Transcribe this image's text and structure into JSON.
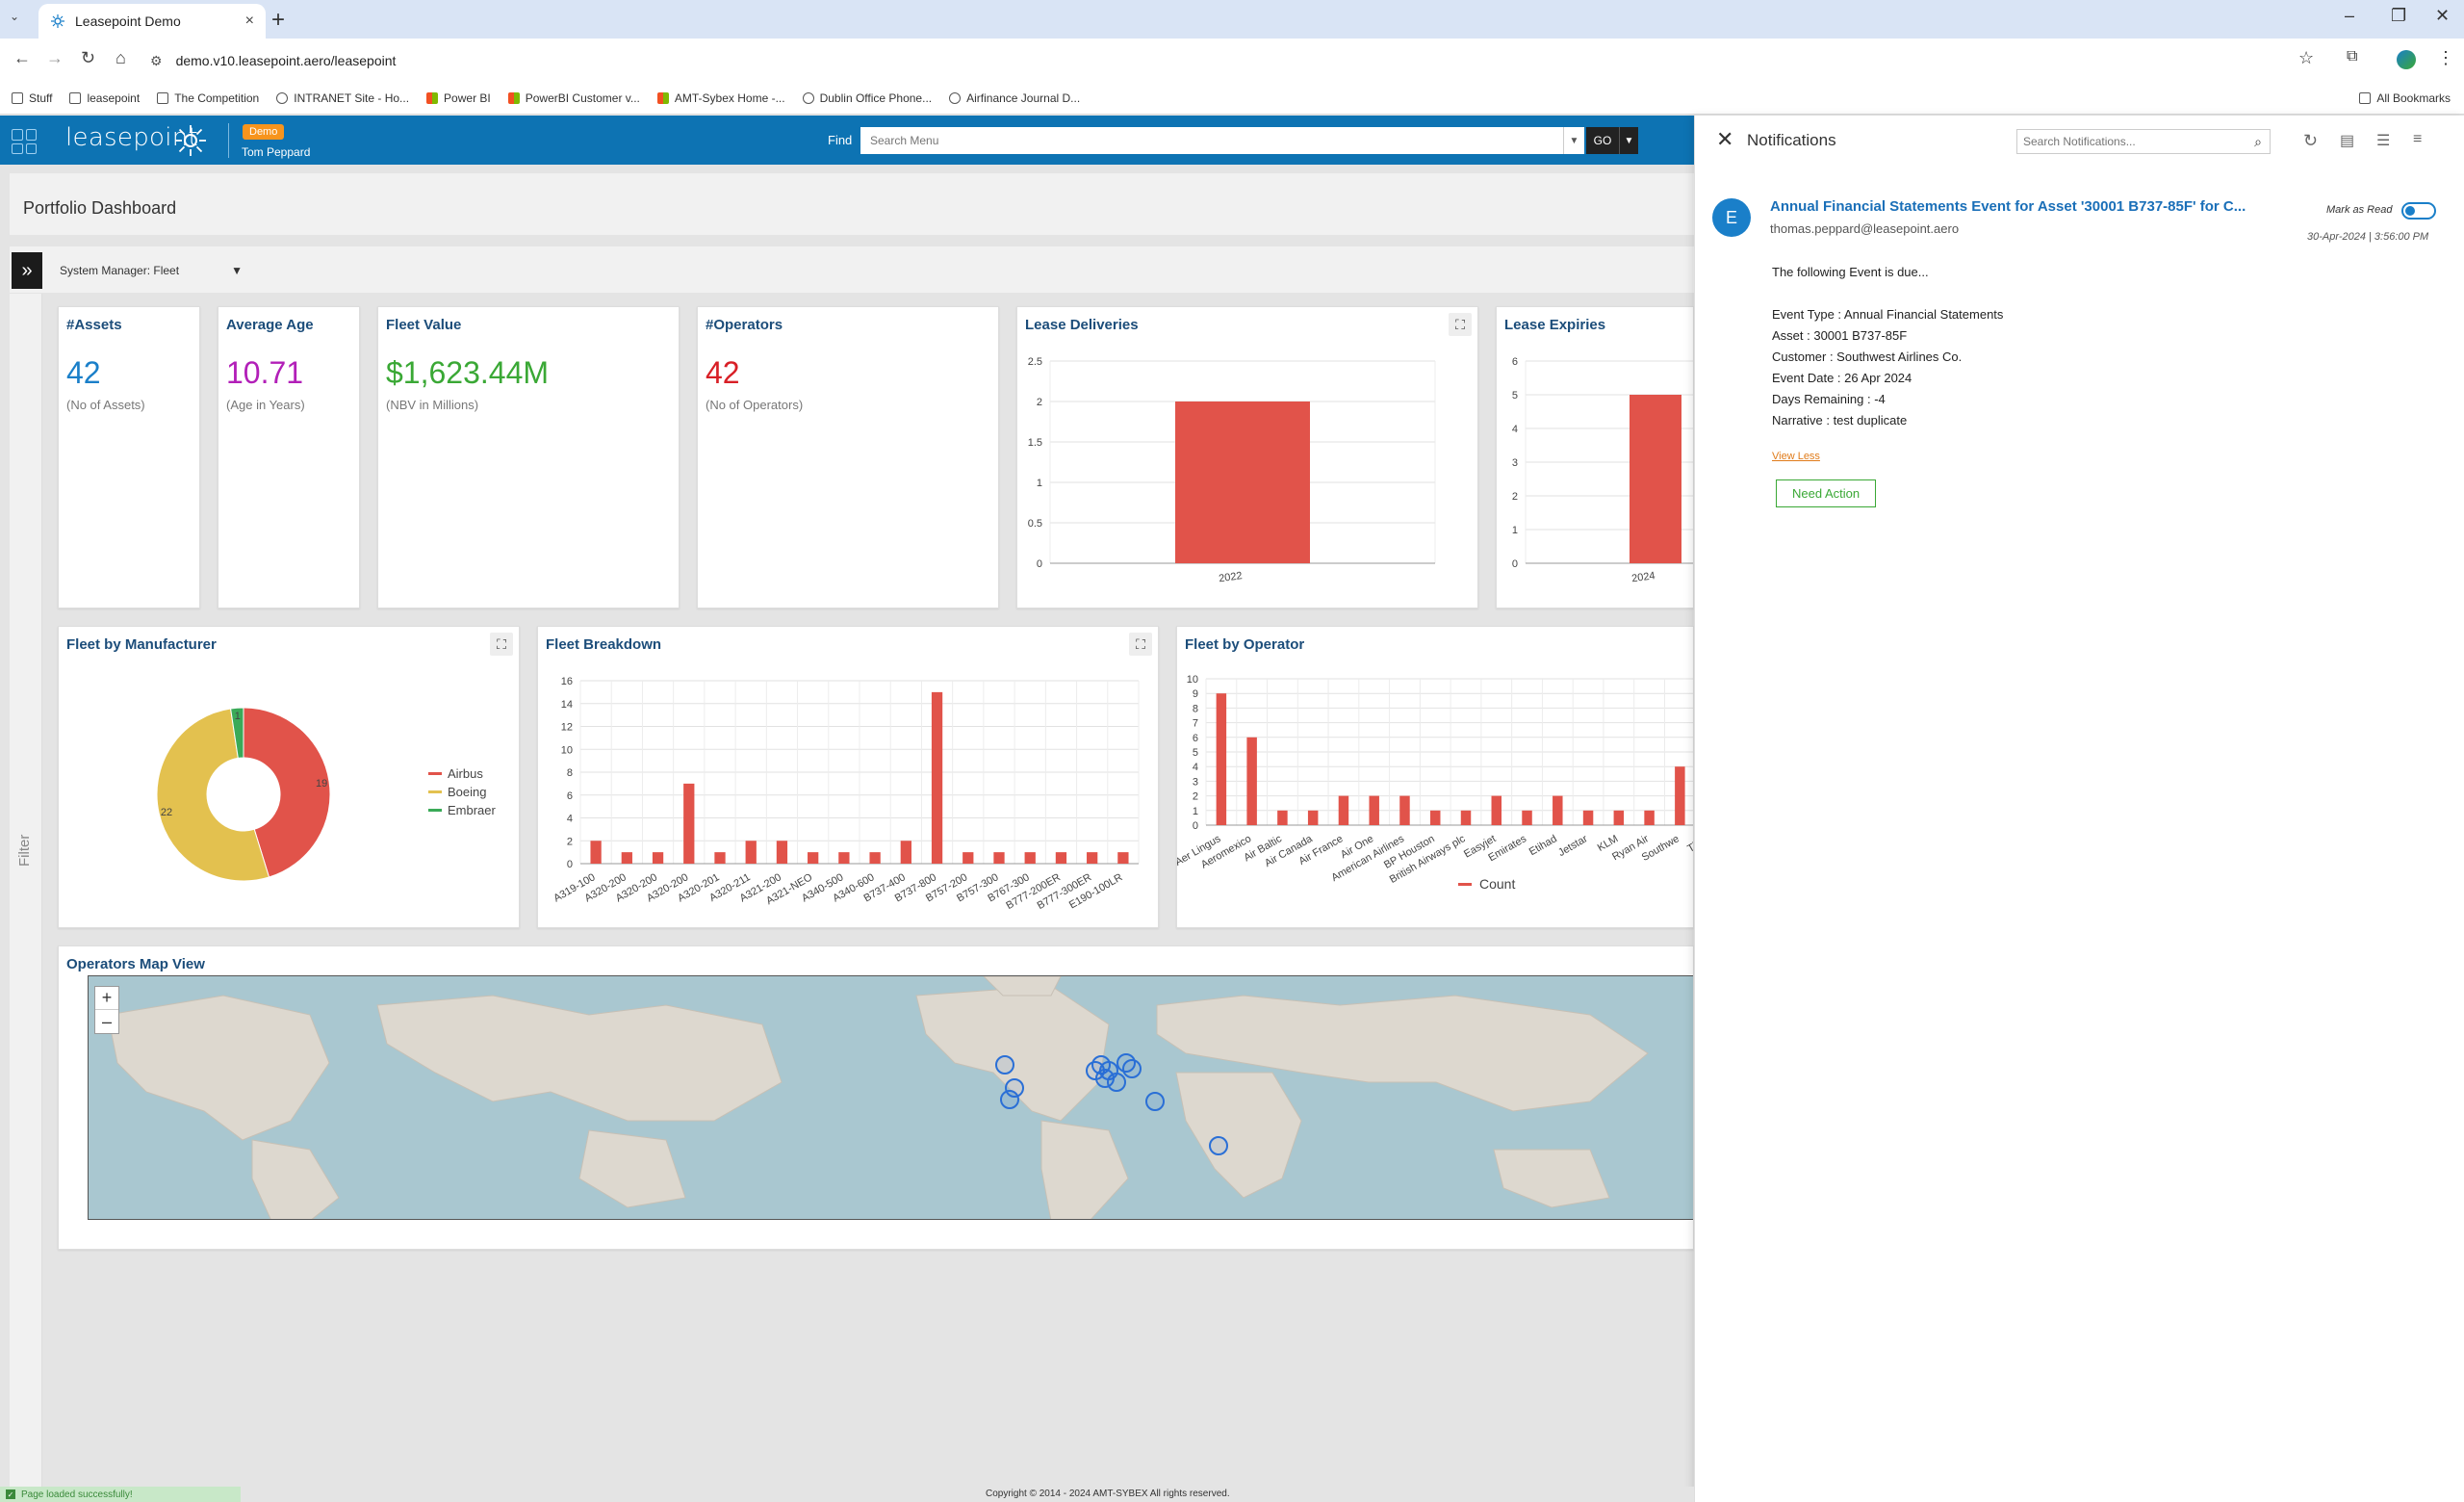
{
  "browser": {
    "tab_title": "Leasepoint Demo",
    "tab_close": "×",
    "new_tab": "+",
    "url": "demo.v10.leasepoint.aero/leasepoint",
    "window_controls": [
      "–",
      "❐",
      "✕"
    ],
    "bookmarks": [
      "Stuff",
      "leasepoint",
      "The Competition",
      "INTRANET Site - Ho...",
      "Power BI",
      "PowerBI Customer v...",
      "AMT-Sybex Home -...",
      "Dublin Office Phone...",
      "Airfinance Journal D..."
    ],
    "all_bookmarks": "All Bookmarks"
  },
  "header": {
    "logo": "leasepoint",
    "badge": "Demo",
    "user": "Tom Peppard",
    "find_label": "Find",
    "search_placeholder": "Search Menu",
    "go": "GO"
  },
  "page": {
    "title": "Portfolio Dashboard",
    "system_manager": "System Manager: Fleet",
    "filter_tab": "Filter"
  },
  "kpis": [
    {
      "title": "#Assets",
      "value": "42",
      "sub": "(No of Assets)",
      "color": "#1a7fc9"
    },
    {
      "title": "Average Age",
      "value": "10.71",
      "sub": "(Age in Years)",
      "color": "#b21fb8"
    },
    {
      "title": "Fleet Value",
      "value": "$1,623.44M",
      "sub": "(NBV in Millions)",
      "color": "#3aa835"
    },
    {
      "title": "#Operators",
      "value": "42",
      "sub": "(No of Operators)",
      "color": "#d81f26"
    }
  ],
  "panels": {
    "lease_deliveries": "Lease Deliveries",
    "lease_expiries": "Lease Expiries",
    "fleet_by_manufacturer": "Fleet by Manufacturer",
    "fleet_breakdown": "Fleet Breakdown",
    "fleet_by_operator": "Fleet by Operator",
    "map_view": "Operators Map View"
  },
  "chart_data": [
    {
      "type": "bar",
      "title": "Lease Deliveries",
      "categories": [
        "2022"
      ],
      "values": [
        2
      ],
      "ylim": [
        0,
        2.5
      ],
      "yticks": [
        "0",
        "0.5",
        "1",
        "1.5",
        "2",
        "2.5"
      ]
    },
    {
      "type": "bar",
      "title": "Lease Expiries",
      "categories": [
        "2024"
      ],
      "values": [
        5
      ],
      "ylim": [
        0,
        6
      ],
      "yticks": [
        "0",
        "1",
        "2",
        "3",
        "4",
        "5",
        "6"
      ]
    },
    {
      "type": "pie",
      "title": "Fleet by Manufacturer",
      "categories": [
        "Airbus",
        "Boeing",
        "Embraer"
      ],
      "values": [
        19,
        22,
        1
      ],
      "colors": [
        "#e1534a",
        "#e3c14f",
        "#3aaa58"
      ],
      "labels": [
        "19",
        "22",
        "1"
      ]
    },
    {
      "type": "bar",
      "title": "Fleet Breakdown",
      "categories": [
        "A319-100",
        "A320-200",
        "A320-200",
        "A320-200",
        "A320-201",
        "A320-211",
        "A321-200",
        "A321-NEO",
        "A340-500",
        "A340-600",
        "B737-400",
        "B737-800",
        "B757-200",
        "B757-300",
        "B767-300",
        "B777-200ER",
        "B777-300ER",
        "E190-100LR"
      ],
      "xlabels": [
        "A319-100",
        "A320-200",
        "A320-200",
        "A320-200",
        "A320-201",
        "A320-211",
        "A321-200",
        "A321-NEO",
        "A340-500",
        "A340-600",
        "B737-400",
        "B737-800",
        "B757-200",
        "B757-300",
        "B767-300",
        "B777-200ER",
        "B777-300ER",
        "E190-100LR"
      ],
      "values": [
        2,
        1,
        1,
        7,
        1,
        2,
        2,
        1,
        1,
        1,
        2,
        15,
        1,
        1,
        1,
        1,
        1,
        1
      ],
      "ylim": [
        0,
        16
      ],
      "yticks": [
        "0",
        "2",
        "4",
        "6",
        "8",
        "10",
        "12",
        "14",
        "16"
      ]
    },
    {
      "type": "bar",
      "title": "Fleet by Operator",
      "categories": [
        "Aer Lingus",
        "Aeromexico",
        "Air Baltic",
        "Air Canada",
        "Air France",
        "Air One",
        "American Airlines",
        "BP Houston",
        "British Airways plc",
        "Easyjet",
        "Emirates",
        "Etihad",
        "Jetstar",
        "KLM",
        "Ryan Air",
        "Southwest",
        "Tiger"
      ],
      "xlabels": [
        "Aer Lingus",
        "Aeromexico",
        "Air Baltic",
        "Air Canada",
        "Air France",
        "Air One",
        "American Airlines",
        "BP Houston",
        "British Airways plc",
        "Easyjet",
        "Emirates",
        "Etihad",
        "Jetstar",
        "KLM",
        "Ryan Air",
        "Southwe",
        "Tiger"
      ],
      "values": [
        9,
        6,
        1,
        1,
        2,
        2,
        2,
        1,
        1,
        2,
        1,
        2,
        1,
        1,
        1,
        4,
        0
      ],
      "series_name": "Count",
      "ylim": [
        0,
        10
      ],
      "yticks": [
        "0",
        "1",
        "2",
        "3",
        "4",
        "5",
        "6",
        "7",
        "8",
        "9",
        "10"
      ]
    }
  ],
  "map": {
    "zoom_in": "+",
    "zoom_out": "–"
  },
  "notifications": {
    "title": "Notifications",
    "search_placeholder": "Search Notifications...",
    "avatar": "E",
    "item_title": "Annual Financial Statements Event for Asset '30001 B737-85F' for C...",
    "email": "thomas.peppard@leasepoint.aero",
    "mark_as_read": "Mark as Read",
    "timestamp": "30-Apr-2024 | 3:56:00 PM",
    "lines": [
      "The following Event is due...",
      "Event Type : Annual Financial Statements",
      "Asset : 30001 B737-85F",
      "Customer : Southwest Airlines Co.",
      "Event Date : 26 Apr 2024",
      "Days Remaining : -4",
      "Narrative : test duplicate"
    ],
    "view_less": "View Less",
    "need_action": "Need Action"
  },
  "footer": {
    "status": "Page loaded successfully!",
    "copyright": "Copyright © 2014 - 2024 AMT-SYBEX All rights reserved."
  }
}
